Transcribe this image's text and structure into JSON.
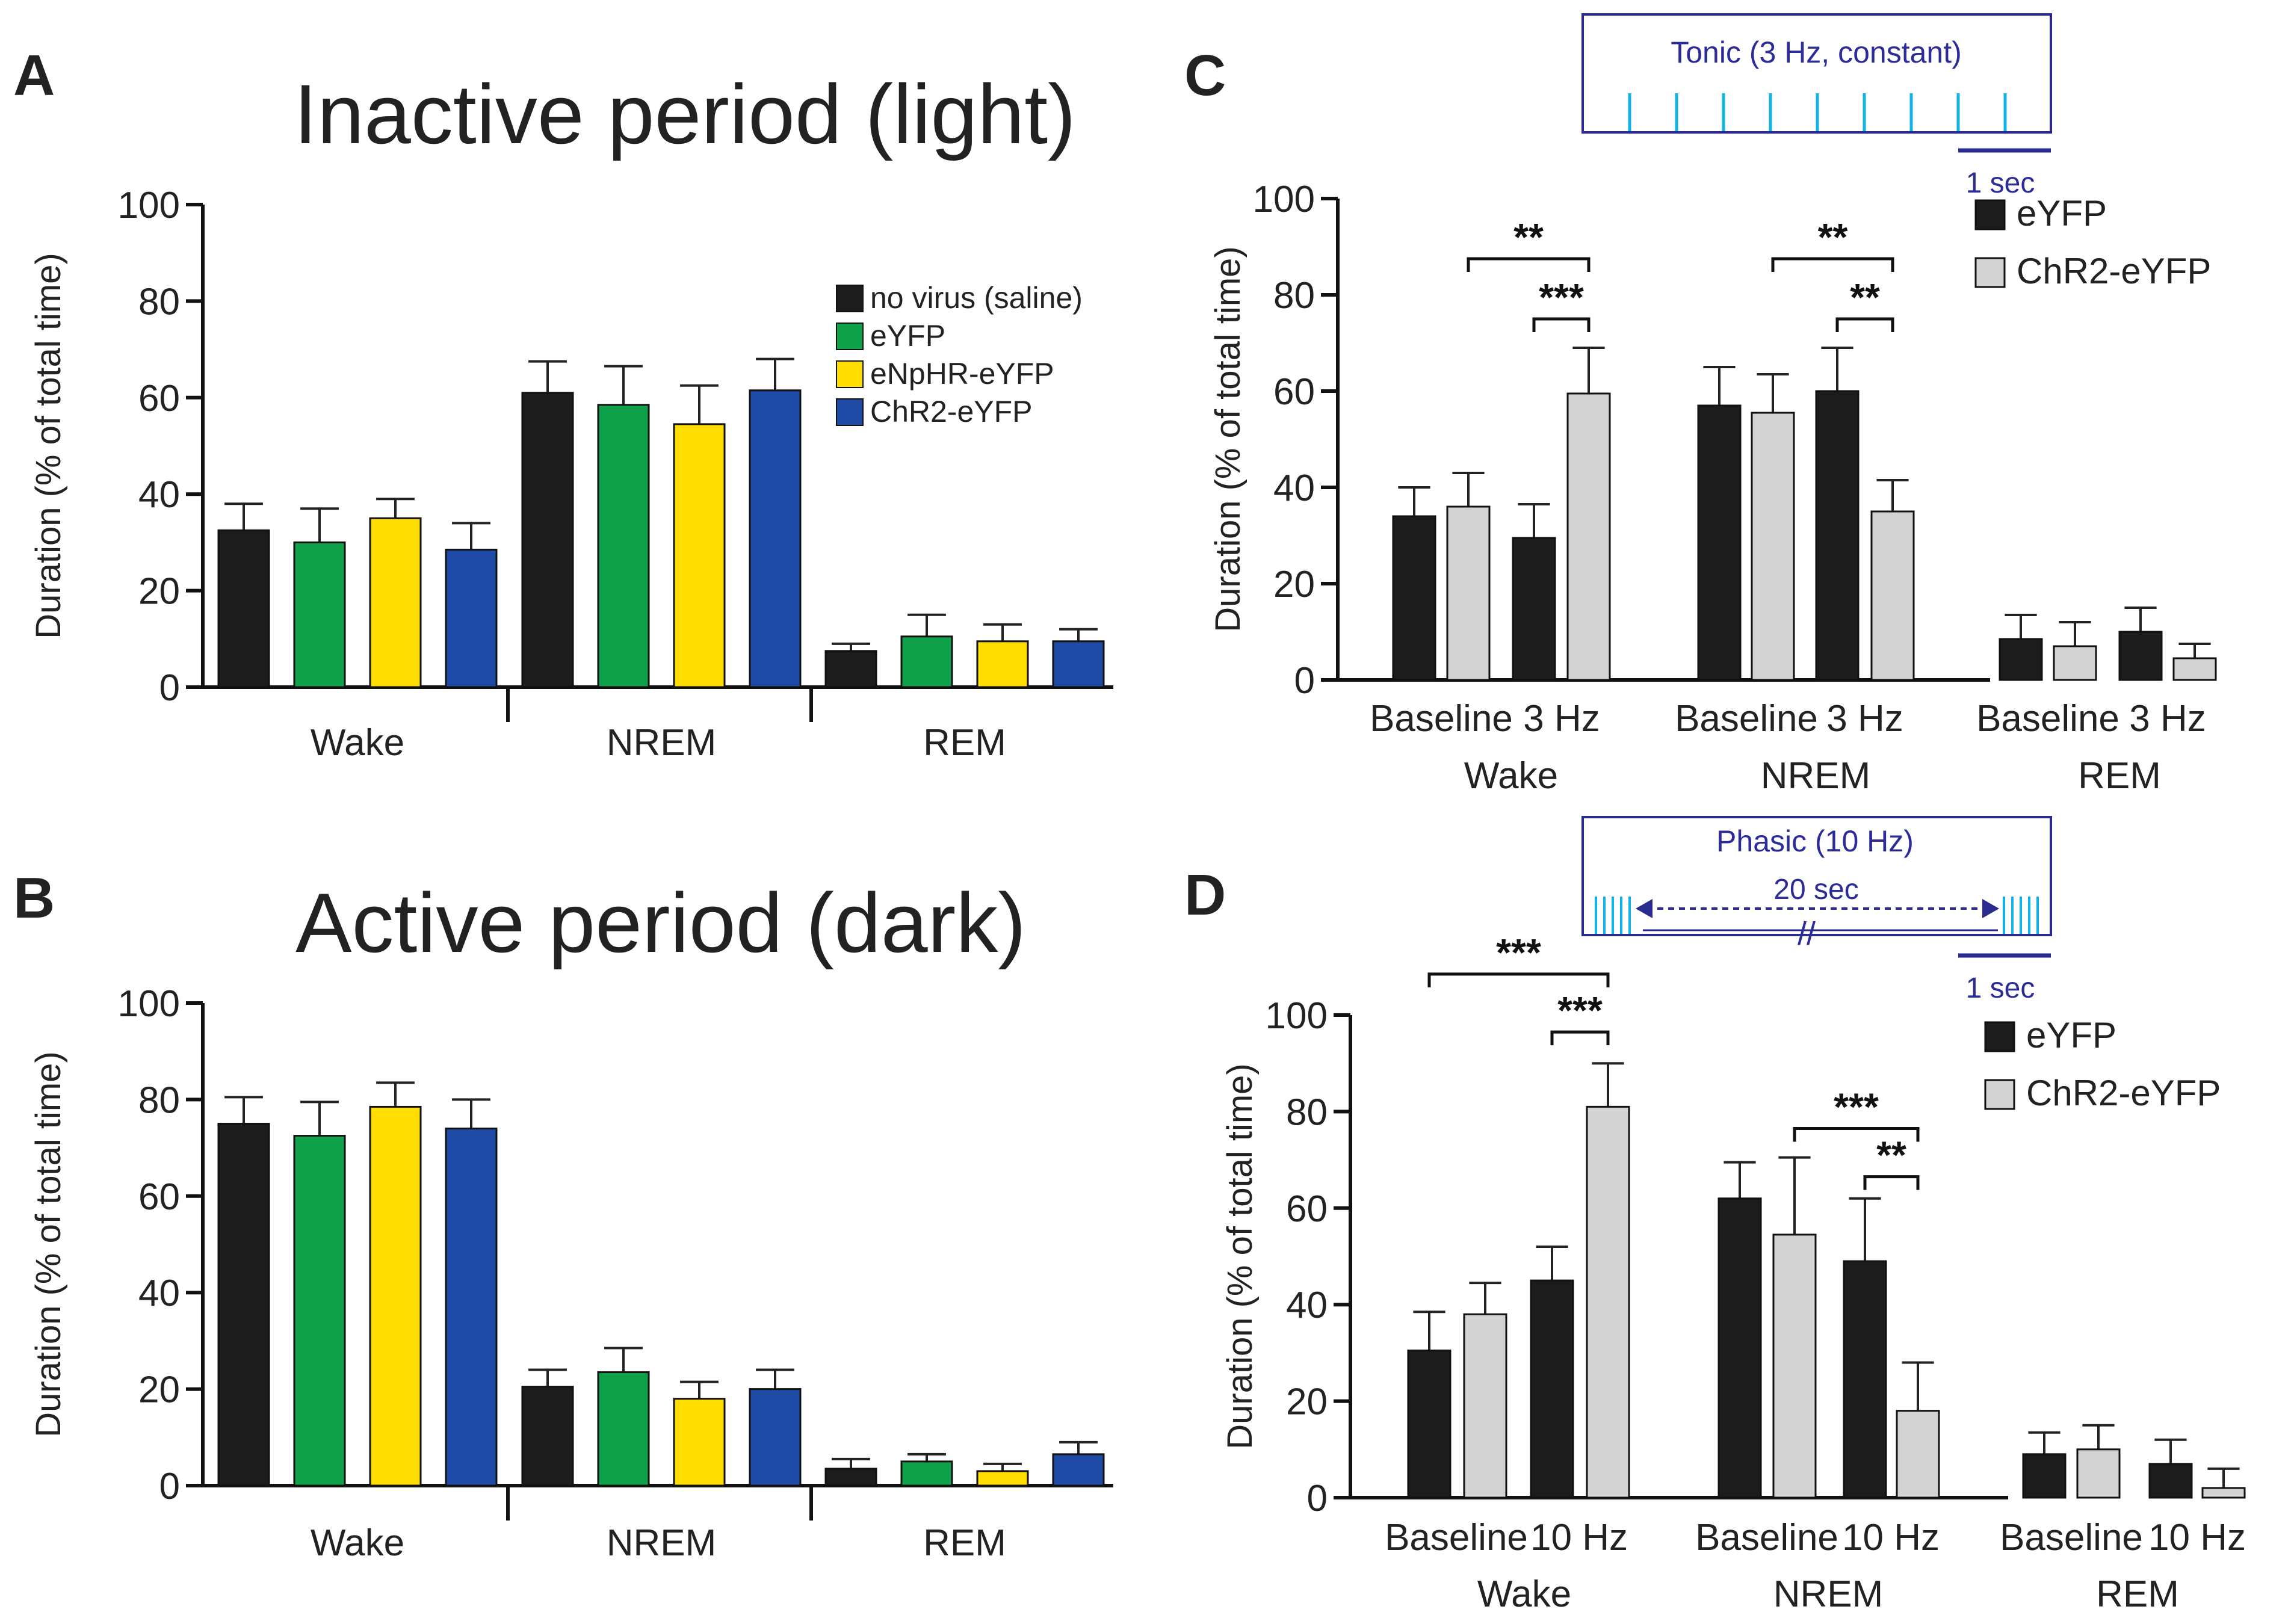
{
  "colors": {
    "black": "#1c1c1c",
    "green": "#10a24a",
    "yellow": "#ffdd00",
    "blue": "#1f4aa6",
    "grey": "#d3d3d3",
    "diagram_line": "#2b2b8f",
    "pulse": "#10b5e5",
    "diagram_text": "#2b2b9a"
  },
  "chart_data": [
    {
      "id": "A",
      "panel_label": "A",
      "type": "bar",
      "title": "Inactive period (light)",
      "ylabel": "Duration (% of total time)",
      "ylim": [
        0,
        100
      ],
      "yticks": [
        0,
        20,
        40,
        60,
        80,
        100
      ],
      "groups": [
        "Wake",
        "NREM",
        "REM"
      ],
      "legend": [
        "no virus (saline)",
        "eYFP",
        "eNpHR-eYFP",
        "ChR2-eYFP"
      ],
      "series": [
        {
          "name": "no virus (saline)",
          "color": "#1c1c1c",
          "values": [
            32.5,
            61,
            7.5
          ],
          "errors": [
            5.5,
            6.5,
            1.5
          ]
        },
        {
          "name": "eYFP",
          "color": "#10a24a",
          "values": [
            30,
            58.5,
            10.5
          ],
          "errors": [
            7,
            8,
            4.5
          ]
        },
        {
          "name": "eNpHR-eYFP",
          "color": "#ffdd00",
          "values": [
            35,
            54.5,
            9.5
          ],
          "errors": [
            4,
            8,
            3.5
          ]
        },
        {
          "name": "ChR2-eYFP",
          "color": "#1f4aa6",
          "values": [
            28.5,
            61.5,
            9.5
          ],
          "errors": [
            5.5,
            6.5,
            2.5
          ]
        }
      ]
    },
    {
      "id": "B",
      "panel_label": "B",
      "type": "bar",
      "title": "Active period (dark)",
      "ylabel": "Duration (% of total time)",
      "ylim": [
        0,
        100
      ],
      "yticks": [
        0,
        20,
        40,
        60,
        80,
        100
      ],
      "groups": [
        "Wake",
        "NREM",
        "REM"
      ],
      "series": [
        {
          "name": "no virus (saline)",
          "color": "#1c1c1c",
          "values": [
            75,
            20.5,
            3.5
          ],
          "errors": [
            5.5,
            3.5,
            2
          ]
        },
        {
          "name": "eYFP",
          "color": "#10a24a",
          "values": [
            72.5,
            23.5,
            5
          ],
          "errors": [
            7,
            5,
            1.5
          ]
        },
        {
          "name": "eNpHR-eYFP",
          "color": "#ffdd00",
          "values": [
            78.5,
            18,
            3
          ],
          "errors": [
            5,
            3.5,
            1.5
          ]
        },
        {
          "name": "ChR2-eYFP",
          "color": "#1f4aa6",
          "values": [
            74,
            20,
            6.5
          ],
          "errors": [
            6,
            4,
            2.5
          ]
        }
      ]
    },
    {
      "id": "C",
      "panel_label": "C",
      "type": "bar",
      "ylabel": "Duration (% of total time)",
      "ylim": [
        0,
        100
      ],
      "yticks": [
        0,
        20,
        40,
        60,
        80,
        100
      ],
      "groups": [
        "Wake",
        "NREM",
        "REM"
      ],
      "conditions": [
        "Baseline",
        "3 Hz"
      ],
      "legend": [
        "eYFP",
        "ChR2-eYFP"
      ],
      "series": [
        {
          "name": "eYFP",
          "color": "#1c1c1c",
          "values": [
            34,
            29.5,
            57,
            60,
            8.5,
            10
          ],
          "errors": [
            6,
            7,
            8,
            9,
            5,
            5
          ]
        },
        {
          "name": "ChR2-eYFP",
          "color": "#d3d3d3",
          "values": [
            36,
            59.5,
            55.5,
            35,
            7,
            4.5
          ],
          "errors": [
            7,
            9.5,
            8,
            6.5,
            5,
            3
          ]
        }
      ],
      "significance": [
        {
          "label": "**",
          "from_bar": 1,
          "to_bar": 3,
          "y": 87.5
        },
        {
          "label": "***",
          "from_bar": 2,
          "to_bar": 3,
          "y": 75
        },
        {
          "label": "**",
          "from_bar": 5,
          "to_bar": 7,
          "y": 87.5
        },
        {
          "label": "**",
          "from_bar": 6,
          "to_bar": 7,
          "y": 75
        }
      ],
      "protocol": {
        "title": "Tonic (3 Hz, constant)",
        "scale": "1 sec"
      }
    },
    {
      "id": "D",
      "panel_label": "D",
      "type": "bar",
      "ylabel": "Duration (% of total time)",
      "ylim": [
        0,
        100
      ],
      "yticks": [
        0,
        20,
        40,
        60,
        80,
        100
      ],
      "groups": [
        "Wake",
        "NREM",
        "REM"
      ],
      "conditions": [
        "Baseline",
        "10 Hz"
      ],
      "legend": [
        "eYFP",
        "ChR2-eYFP"
      ],
      "series": [
        {
          "name": "eYFP",
          "color": "#1c1c1c",
          "values": [
            30.5,
            45,
            62,
            49,
            9,
            7
          ],
          "errors": [
            8,
            7,
            7.5,
            13,
            4.5,
            5
          ]
        },
        {
          "name": "ChR2-eYFP",
          "color": "#d3d3d3",
          "values": [
            38,
            81,
            54.5,
            18,
            10,
            2
          ],
          "errors": [
            6.5,
            9,
            16,
            10,
            5,
            4
          ]
        }
      ],
      "significance": [
        {
          "label": "***",
          "from_bar": 0,
          "to_bar": 3,
          "y": 108.5
        },
        {
          "label": "***",
          "from_bar": 2,
          "to_bar": 3,
          "y": 96.5
        },
        {
          "label": "***",
          "from_bar": 5,
          "to_bar": 7,
          "y": 76.5
        },
        {
          "label": "**",
          "from_bar": 6,
          "to_bar": 7,
          "y": 66.5
        }
      ],
      "protocol": {
        "title": "Phasic (10 Hz)",
        "interval": "20 sec",
        "break_mark": "//",
        "scale": "1 sec"
      }
    }
  ]
}
